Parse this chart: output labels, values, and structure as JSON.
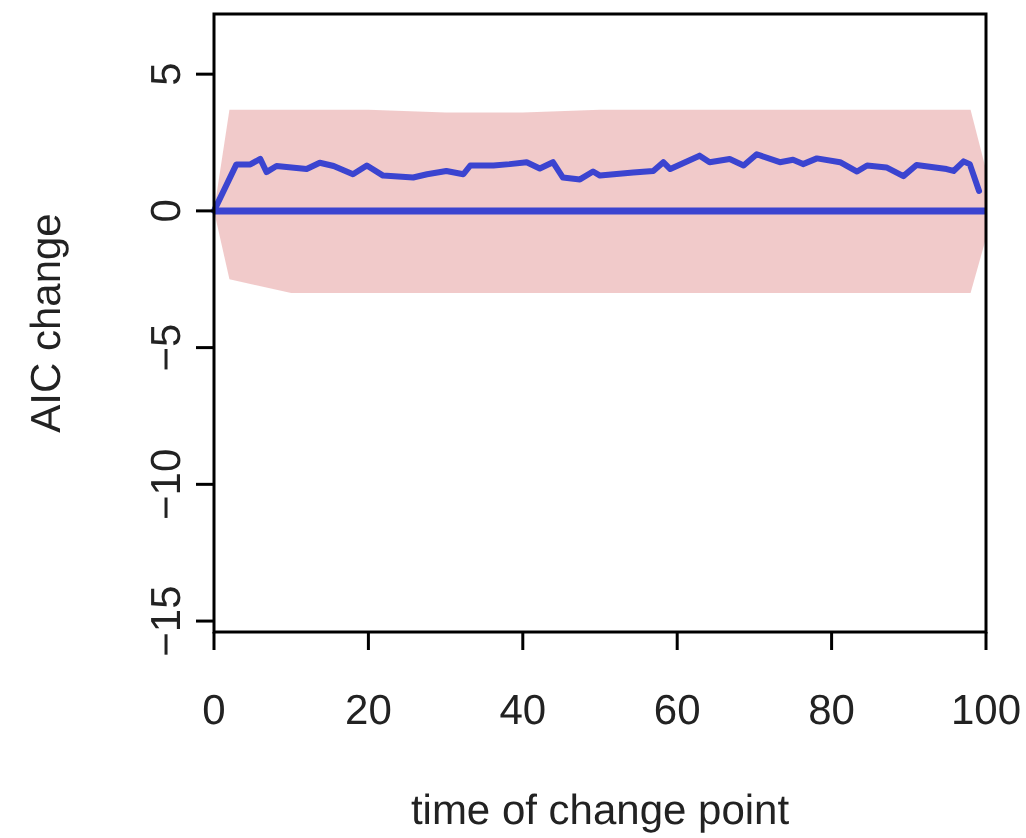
{
  "chart_data": {
    "type": "line",
    "xlabel": "time of change point",
    "ylabel": "AIC change",
    "xlim": [
      0,
      100
    ],
    "xticks": [
      0,
      20,
      40,
      60,
      80,
      100
    ],
    "ylim": [
      -15.4,
      7.2
    ],
    "yticks": [
      -15,
      -10,
      -5,
      0,
      5
    ],
    "series": [
      {
        "color": "#d05050",
        "x": [
          0,
          2,
          10,
          20,
          30,
          40,
          50,
          60,
          70,
          80,
          90,
          98,
          100
        ],
        "values": [
          null,
          null,
          null,
          null,
          null,
          null,
          null,
          null,
          null,
          null,
          null,
          null,
          null
        ],
        "lower": [
          0,
          -2.5,
          -3,
          -3,
          -3,
          -3,
          -3,
          -3,
          -3,
          -3,
          -3,
          -3,
          -1
        ],
        "upper": [
          0,
          3.7,
          3.7,
          3.7,
          3.6,
          3.6,
          3.7,
          3.7,
          3.7,
          3.7,
          3.7,
          3.7,
          1.5
        ]
      },
      {
        "color": "#3b44d0",
        "x": [
          0,
          2.9,
          4.7,
          6,
          6.8,
          8.1,
          12,
          13.7,
          15.5,
          18,
          19.8,
          21.9,
          25.8,
          27.6,
          30.1,
          32.3,
          33.2,
          36.2,
          38.3,
          40.5,
          42.2,
          43.9,
          45.2,
          47.4,
          49.1,
          50,
          54.3,
          56.9,
          58.2,
          59.1,
          62.9,
          64.2,
          66.8,
          68.6,
          70.3,
          73.3,
          75,
          76.3,
          78.1,
          81.1,
          83.3,
          84.6,
          87.1,
          89.3,
          91,
          94.9,
          95.8,
          97.1,
          97.9,
          99.1
        ],
        "values": [
          0,
          1.7,
          1.7,
          1.9,
          1.42,
          1.64,
          1.53,
          1.76,
          1.64,
          1.34,
          1.66,
          1.29,
          1.22,
          1.34,
          1.46,
          1.34,
          1.66,
          1.66,
          1.71,
          1.78,
          1.55,
          1.78,
          1.22,
          1.15,
          1.44,
          1.29,
          1.4,
          1.46,
          1.78,
          1.53,
          2.02,
          1.78,
          1.9,
          1.66,
          2.07,
          1.78,
          1.87,
          1.71,
          1.92,
          1.78,
          1.44,
          1.66,
          1.59,
          1.27,
          1.68,
          1.53,
          1.46,
          1.81,
          1.71,
          0.73
        ]
      }
    ],
    "ref_lines": [
      {
        "axis": "y",
        "value": 0,
        "color": "#3b44d0"
      }
    ],
    "grid": false,
    "line_style": "solid",
    "marker": "none"
  }
}
